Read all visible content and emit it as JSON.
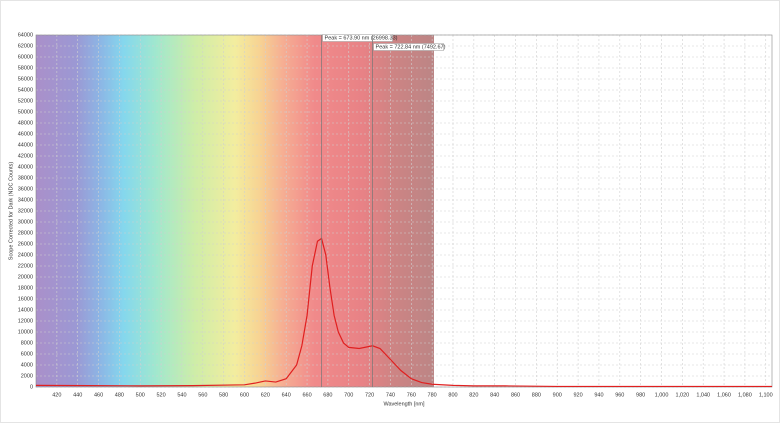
{
  "chart_data": {
    "type": "line",
    "x_label": "Wavelength [nm]",
    "y_label": "Scope Corrected for Dark (NDC Counts)",
    "color": "#e02020",
    "x": [
      400,
      450,
      500,
      550,
      600,
      610,
      620,
      630,
      640,
      650,
      655,
      660,
      665,
      670,
      673.9,
      678,
      682,
      686,
      690,
      695,
      700,
      710,
      722.84,
      730,
      740,
      750,
      760,
      770,
      780,
      800,
      820,
      850,
      900,
      1000,
      1100,
      1106
    ],
    "values": [
      300,
      250,
      200,
      250,
      400,
      700,
      1100,
      900,
      1500,
      4000,
      7500,
      13000,
      22000,
      26500,
      26998.33,
      24000,
      18000,
      13000,
      10000,
      8000,
      7200,
      7000,
      7492.67,
      7000,
      5000,
      3000,
      1500,
      800,
      500,
      300,
      200,
      200,
      100,
      100,
      100,
      100
    ],
    "annotations": [
      {
        "text": "Peak = 673.90 nm (26998.33)",
        "x": 673.9
      },
      {
        "text": "Peak = 722.84 nm (7492.67)",
        "x": 722.84
      }
    ],
    "xlim": [
      400,
      1106
    ],
    "ylim": [
      0,
      64000
    ],
    "xticks": [
      420,
      440,
      460,
      480,
      500,
      520,
      540,
      560,
      580,
      600,
      620,
      640,
      660,
      680,
      700,
      720,
      740,
      760,
      780,
      800,
      820,
      840,
      860,
      880,
      900,
      920,
      940,
      960,
      980,
      {
        "value": 1000,
        "label": "1,000"
      },
      {
        "value": 1020,
        "label": "1,020"
      },
      {
        "value": 1040,
        "label": "1,040"
      },
      {
        "value": 1060,
        "label": "1,060"
      },
      {
        "value": 1080,
        "label": "1,080"
      },
      {
        "value": 1100,
        "label": "1,100"
      }
    ],
    "yticks": [
      0,
      2000,
      4000,
      6000,
      8000,
      10000,
      12000,
      14000,
      16000,
      18000,
      20000,
      22000,
      24000,
      26000,
      28000,
      30000,
      32000,
      34000,
      36000,
      38000,
      40000,
      42000,
      44000,
      46000,
      48000,
      50000,
      52000,
      54000,
      56000,
      58000,
      60000,
      62000,
      64000
    ],
    "grid": true
  }
}
